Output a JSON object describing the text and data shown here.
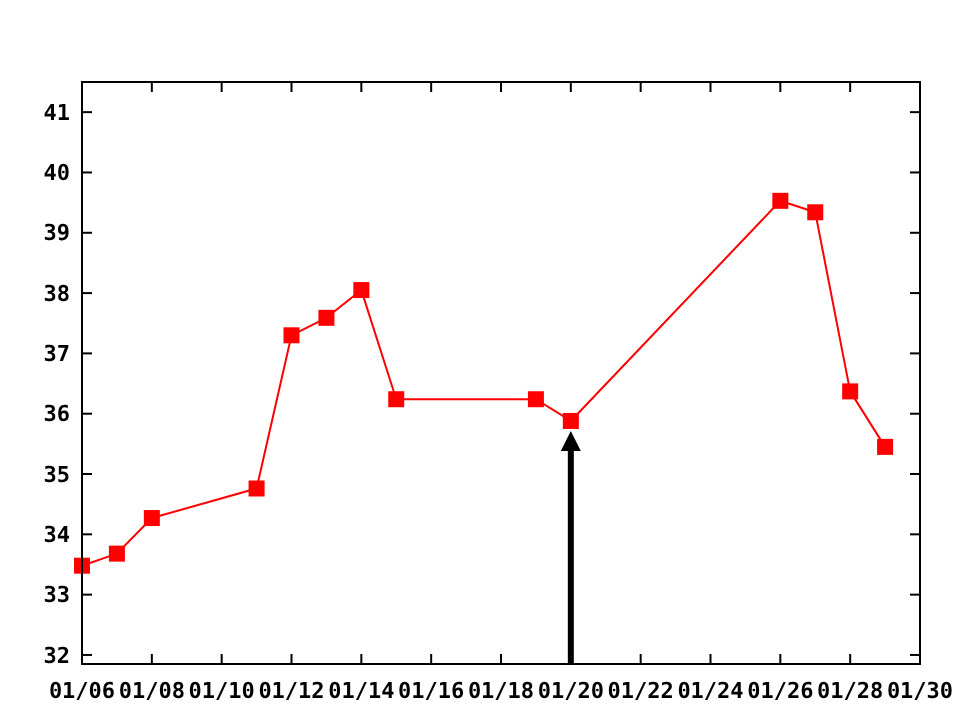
{
  "chart_data": {
    "type": "line",
    "x": [
      "--01-06",
      "--01-07",
      "--01-08",
      "--01-11",
      "--01-12",
      "--01-13",
      "--01-14",
      "--01-15",
      "--01-19",
      "--01-20",
      "--01-26",
      "--01-27",
      "--01-28",
      "--01-29"
    ],
    "series": [
      {
        "color": "#ff0000",
        "values": [
          33.48,
          33.68,
          34.27,
          34.76,
          37.3,
          37.59,
          38.05,
          36.24,
          36.24,
          35.88,
          39.53,
          39.34,
          36.37,
          35.45
        ]
      }
    ],
    "marker": "square",
    "line_style": "solid",
    "xlim": [
      "--01-06",
      "--01-30"
    ],
    "xticks": [
      {
        "value": "--01-06",
        "label": "01/06"
      },
      {
        "value": "--01-08",
        "label": "01/08"
      },
      {
        "value": "--01-10",
        "label": "01/10"
      },
      {
        "value": "--01-12",
        "label": "01/12"
      },
      {
        "value": "--01-14",
        "label": "01/14"
      },
      {
        "value": "--01-16",
        "label": "01/16"
      },
      {
        "value": "--01-18",
        "label": "01/18"
      },
      {
        "value": "--01-20",
        "label": "01/20"
      },
      {
        "value": "--01-22",
        "label": "01/22"
      },
      {
        "value": "--01-24",
        "label": "01/24"
      },
      {
        "value": "--01-26",
        "label": "01/26"
      },
      {
        "value": "--01-28",
        "label": "01/28"
      },
      {
        "value": "--01-30",
        "label": "01/30"
      }
    ],
    "ylim": [
      31.85,
      41.5
    ],
    "yticks": [
      32,
      33,
      34,
      35,
      36,
      37,
      38,
      39,
      40,
      41
    ],
    "ref_lines": [
      {
        "axis": "x",
        "value": "--01-20",
        "color": "#000000"
      }
    ]
  }
}
